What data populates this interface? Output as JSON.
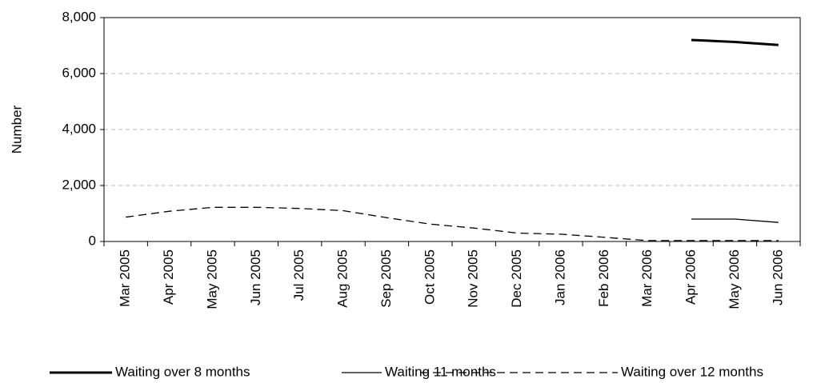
{
  "chart_data": {
    "type": "line",
    "y_label": "Number",
    "categories": [
      "Mar 2005",
      "Apr 2005",
      "May 2005",
      "Jun 2005",
      "Jul 2005",
      "Aug 2005",
      "Sep 2005",
      "Oct 2005",
      "Nov 2005",
      "Dec 2005",
      "Jan 2006",
      "Feb 2006",
      "Mar 2006",
      "Apr 2006",
      "May 2006",
      "Jun 2006"
    ],
    "series": [
      {
        "name": "Waiting over 8 months",
        "color": "#000000",
        "width": 3,
        "dashed": false,
        "values": [
          null,
          null,
          null,
          null,
          null,
          null,
          null,
          null,
          null,
          null,
          null,
          null,
          null,
          7200,
          7130,
          7020
        ]
      },
      {
        "name": "Waiting 11 months",
        "color": "#000000",
        "width": 1.3,
        "dashed": false,
        "values": [
          null,
          null,
          null,
          null,
          null,
          null,
          null,
          null,
          null,
          null,
          null,
          null,
          null,
          800,
          800,
          680
        ]
      },
      {
        "name": "Waiting over 12 months",
        "color": "#000000",
        "width": 1.3,
        "dashed": true,
        "values": [
          870,
          1080,
          1220,
          1220,
          1180,
          1100,
          850,
          620,
          480,
          300,
          260,
          150,
          30,
          30,
          30,
          30
        ]
      }
    ],
    "ylim": [
      0,
      8000
    ],
    "yticks": [
      0,
      {
        "value": 2000,
        "label": "2,000"
      },
      {
        "value": 4000,
        "label": "4,000"
      },
      {
        "value": 6000,
        "label": "6,000"
      },
      {
        "value": 8000,
        "label": "8,000"
      }
    ],
    "grid": true
  }
}
